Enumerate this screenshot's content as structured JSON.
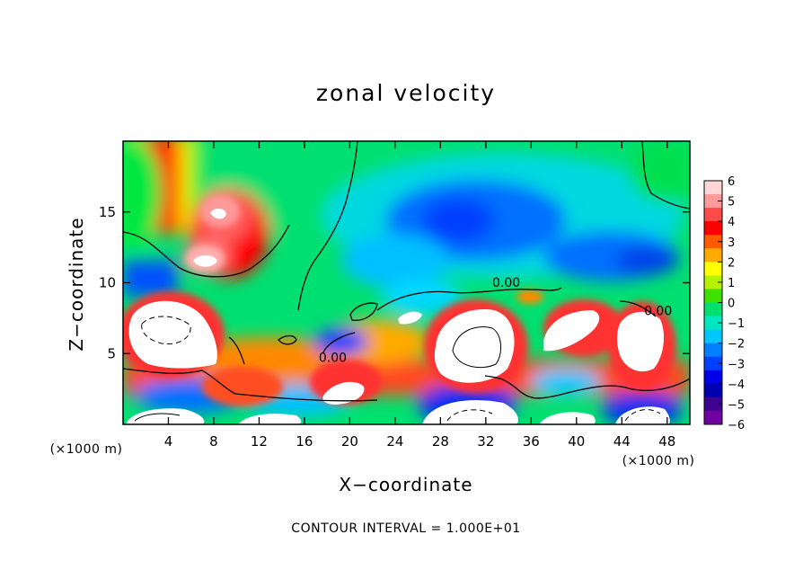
{
  "chart_data": {
    "type": "heatmap",
    "title": "zonal velocity",
    "xlabel": "X−coordinate",
    "ylabel": "Z−coordinate",
    "x_unit": "(×1000 m)",
    "z_unit": "(×1000 m)",
    "footer": "CONTOUR INTERVAL = 1.000E+01",
    "xlim": [
      0,
      50
    ],
    "ylim": [
      0,
      20
    ],
    "x_ticks": [
      4,
      8,
      12,
      16,
      20,
      24,
      28,
      32,
      36,
      40,
      44,
      48
    ],
    "y_ticks": [
      5,
      10,
      15
    ],
    "colorbar": {
      "min": -6,
      "max": 6,
      "ticks": [
        "6",
        "5",
        "4",
        "3",
        "2",
        "1",
        "0",
        "−1",
        "−2",
        "−3",
        "−4",
        "−5",
        "−6"
      ],
      "colors": [
        "#ffd6d6",
        "#ff9a9a",
        "#ff4a4a",
        "#ff0000",
        "#ff5a00",
        "#ffaa00",
        "#ffff00",
        "#b6f200",
        "#3ee000",
        "#00e070",
        "#00e8c0",
        "#00c8ff",
        "#0080ff",
        "#0040ff",
        "#0000e8",
        "#0000b0",
        "#400090",
        "#7000a0"
      ]
    },
    "contour_labels": [
      {
        "text": "0.00",
        "x": 18.5,
        "z": 4.4
      },
      {
        "text": "0.00",
        "x": 33.8,
        "z": 9.7
      },
      {
        "text": "0.00",
        "x": 47.2,
        "z": 7.7
      }
    ],
    "grid": false
  }
}
